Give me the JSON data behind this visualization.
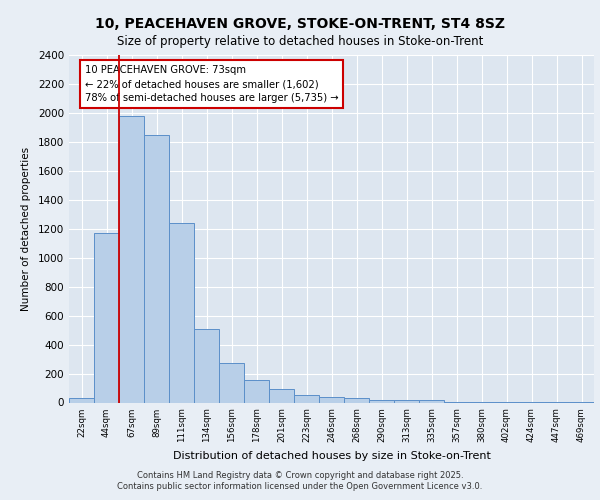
{
  "title_line1": "10, PEACEHAVEN GROVE, STOKE-ON-TRENT, ST4 8SZ",
  "title_line2": "Size of property relative to detached houses in Stoke-on-Trent",
  "xlabel": "Distribution of detached houses by size in Stoke-on-Trent",
  "ylabel": "Number of detached properties",
  "categories": [
    "22sqm",
    "44sqm",
    "67sqm",
    "89sqm",
    "111sqm",
    "134sqm",
    "156sqm",
    "178sqm",
    "201sqm",
    "223sqm",
    "246sqm",
    "268sqm",
    "290sqm",
    "313sqm",
    "335sqm",
    "357sqm",
    "380sqm",
    "402sqm",
    "424sqm",
    "447sqm",
    "469sqm"
  ],
  "values": [
    30,
    1170,
    1980,
    1850,
    1240,
    510,
    270,
    155,
    90,
    50,
    40,
    30,
    20,
    20,
    15,
    5,
    5,
    2,
    2,
    2,
    2
  ],
  "bar_color": "#b8cfe8",
  "bar_edge_color": "#5b8fc9",
  "vline_index": 2,
  "vline_color": "#cc0000",
  "annotation_box_text": "10 PEACEHAVEN GROVE: 73sqm\n← 22% of detached houses are smaller (1,602)\n78% of semi-detached houses are larger (5,735) →",
  "annotation_box_color": "#cc0000",
  "background_color": "#dde6f0",
  "grid_color": "#ffffff",
  "fig_facecolor": "#e8eef5",
  "ylim": [
    0,
    2400
  ],
  "yticks": [
    0,
    200,
    400,
    600,
    800,
    1000,
    1200,
    1400,
    1600,
    1800,
    2000,
    2200,
    2400
  ],
  "footer_line1": "Contains HM Land Registry data © Crown copyright and database right 2025.",
  "footer_line2": "Contains public sector information licensed under the Open Government Licence v3.0."
}
